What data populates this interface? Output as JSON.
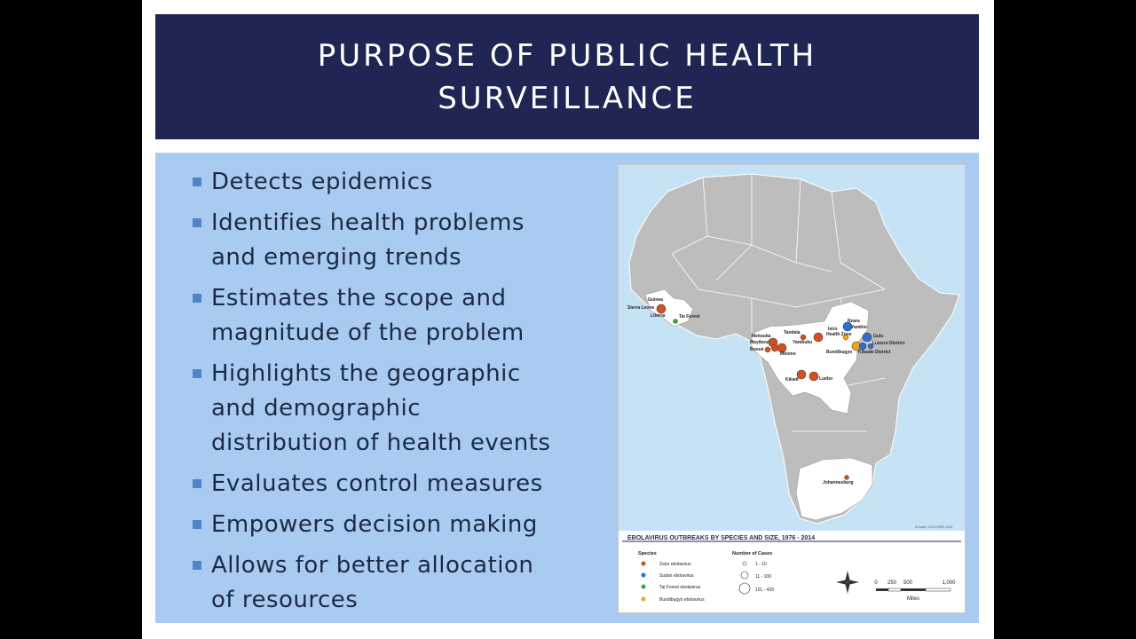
{
  "slide": {
    "title_line1": "PURPOSE OF PUBLIC HEALTH",
    "title_line2": "SURVEILLANCE",
    "bullets": [
      "Detects epidemics",
      "Identifies health problems and emerging trends",
      "Estimates the scope and magnitude of the problem",
      "Highlights the geographic and demographic distribution of health events",
      "Evaluates control measures",
      "Empowers decision making",
      "Allows for better allocation of resources"
    ],
    "bullet_lines": [
      [
        "Detects epidemics"
      ],
      [
        "Identifies health problems",
        "and emerging trends"
      ],
      [
        "Estimates the scope and",
        "magnitude of the problem"
      ],
      [
        "Highlights the geographic",
        "and demographic",
        "distribution of health events"
      ],
      [
        "Evaluates control measures"
      ],
      [
        "Empowers decision making"
      ],
      [
        "Allows for better allocation",
        "of resources"
      ]
    ]
  },
  "map": {
    "title": "EBOLAVIRUS OUTBREAKS BY SPECIES AND SIZE, 1976 - 2014",
    "credit": "E.Drake, CDC/VSPB, 2014",
    "legend_species_header": "Species",
    "legend_cases_header": "Number of Cases",
    "species": [
      {
        "label": "Zaire ebolavirus",
        "color": "#d2501e"
      },
      {
        "label": "Sudan ebolavirus",
        "color": "#2a6fd1"
      },
      {
        "label": "Tai Forest ebolavirus",
        "color": "#3aa33a"
      },
      {
        "label": "Bundibugyo ebolavirus",
        "color": "#f2a51c"
      }
    ],
    "case_sizes": [
      "1 - 10",
      "11 - 100",
      "101 - 425"
    ],
    "scale_labels": [
      "0",
      "250",
      "500",
      "1,000"
    ],
    "scale_unit": "Miles",
    "place_labels": [
      "Guinea",
      "Sierra Leone",
      "Liberia",
      "Tai Forest",
      "Yambuku",
      "Tandala",
      "Mekouka",
      "Mayibout",
      "Booué",
      "Mbomo",
      "Isiro",
      "Health Zone",
      "Nzara",
      "Yambio",
      "Gulu",
      "Luwero District",
      "Bundibugyo",
      "Kibaale District",
      "Kikwit",
      "Luebo",
      "Johannesburg"
    ]
  },
  "colors": {
    "title_bar": "#1f2654",
    "content_bg": "#a9cbf2",
    "bullet_square": "#4f84c6",
    "map_sea": "#c6e3f6",
    "map_land": "#bdbdbd",
    "map_highlight": "#ffffff"
  }
}
